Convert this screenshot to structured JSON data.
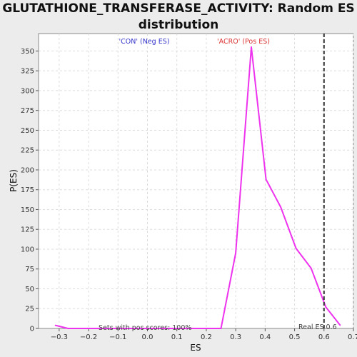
{
  "chart_data": {
    "type": "line",
    "title_line1": "GLUTATHIONE_TRANSFERASE_ACTIVITY: Random ES",
    "title_line2": "distribution",
    "xlabel": "ES",
    "ylabel": "P(ES)",
    "xlim": [
      -0.37,
      0.7
    ],
    "ylim": [
      0,
      372
    ],
    "x_ticks": [
      -0.3,
      -0.2,
      -0.1,
      0.0,
      0.1,
      0.2,
      0.3,
      0.4,
      0.5,
      0.6,
      0.7
    ],
    "x_tick_labels": [
      "−0.3",
      "−0.2",
      "−0.1",
      "0.0",
      "0.1",
      "0.2",
      "0.3",
      "0.4",
      "0.5",
      "0.6",
      "0.7"
    ],
    "y_ticks": [
      0,
      25,
      50,
      75,
      100,
      125,
      150,
      175,
      200,
      225,
      250,
      275,
      300,
      325,
      350
    ],
    "grid": true,
    "series": [
      {
        "color": "#ee33ee",
        "x": [
          -0.313,
          -0.27,
          -0.22,
          -0.17,
          -0.12,
          -0.07,
          -0.02,
          0.03,
          0.08,
          0.13,
          0.18,
          0.25,
          0.3,
          0.353,
          0.403,
          0.453,
          0.505,
          0.556,
          0.606,
          0.655
        ],
        "y": [
          4,
          0,
          0,
          0,
          0,
          0,
          0,
          0,
          0,
          0,
          0,
          0,
          95,
          355,
          188,
          153,
          101,
          76,
          27,
          4
        ]
      }
    ],
    "real_es": 0.6,
    "annotations": {
      "neg_label": "'CON' (Neg ES)",
      "pos_label": "'ACRO' (Pos ES)",
      "sets_label": "Sets with pos scores: 100%",
      "real_es_label": "Real ES 0.6"
    },
    "colors": {
      "neg": "#3333cc",
      "pos": "#dd3333",
      "line": "#ee33ee",
      "real_es_line": "#333333",
      "plot_bg": "#ffffff",
      "grid": "#dddddd"
    }
  }
}
